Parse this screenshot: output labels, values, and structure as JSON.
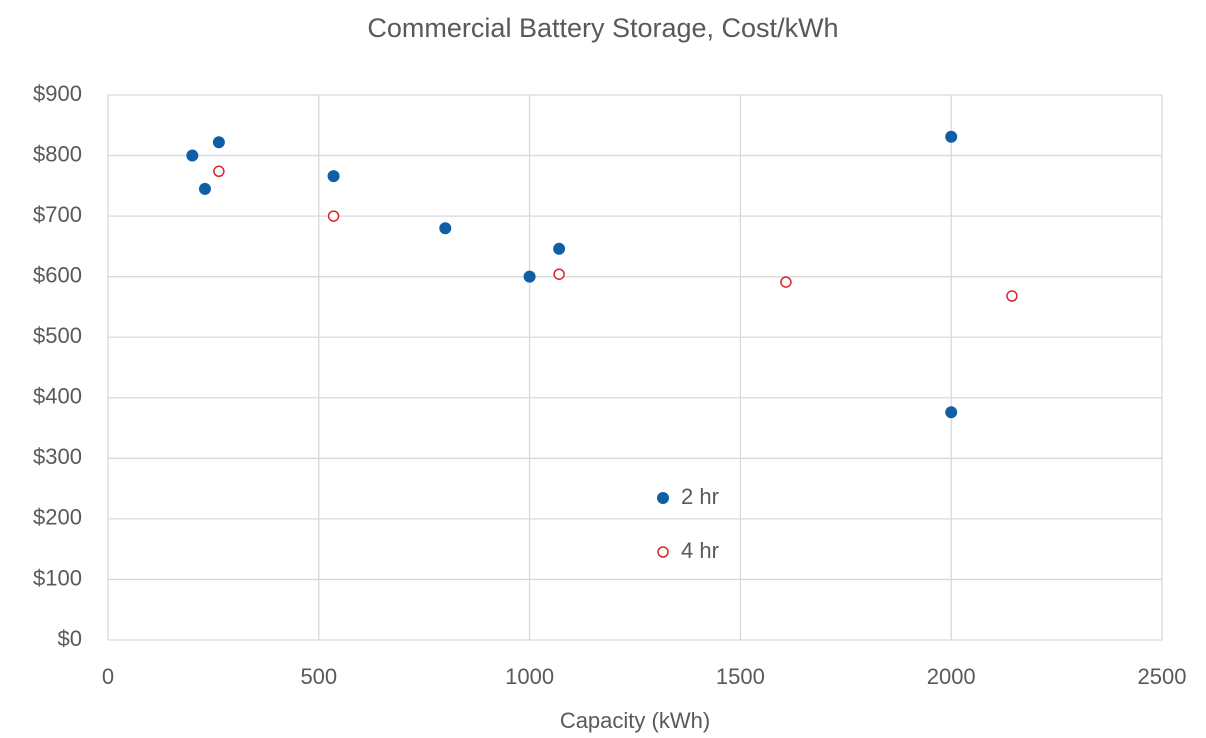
{
  "chart_data": {
    "type": "scatter",
    "title": "Commercial Battery Storage, Cost/kWh",
    "x_label": "Capacity (kWh)",
    "series": [
      {
        "name": "2 hr",
        "color": "#0f5fa6",
        "filled": true,
        "x": [
          200,
          263,
          230,
          535,
          800,
          1000,
          1070,
          2000,
          2000
        ],
        "values": [
          800,
          822,
          745,
          766,
          680,
          600,
          646,
          831,
          376
        ]
      },
      {
        "name": "4 hr",
        "color": "#d9262a",
        "filled": false,
        "x": [
          263,
          535,
          1070,
          1608,
          2144
        ],
        "values": [
          774,
          700,
          604,
          591,
          568
        ]
      }
    ],
    "xlim": [
      0,
      2500
    ],
    "xticks": [
      0,
      500,
      1000,
      1500,
      2000,
      2500
    ],
    "ylim": [
      0,
      900
    ],
    "yticks": [
      {
        "value": 0,
        "label": "$0"
      },
      {
        "value": 100,
        "label": "$100"
      },
      {
        "value": 200,
        "label": "$200"
      },
      {
        "value": 300,
        "label": "$300"
      },
      {
        "value": 400,
        "label": "$400"
      },
      {
        "value": 500,
        "label": "$500"
      },
      {
        "value": 600,
        "label": "$600"
      },
      {
        "value": 700,
        "label": "$700"
      },
      {
        "value": 800,
        "label": "$800"
      },
      {
        "value": 900,
        "label": "$900"
      }
    ],
    "grid": true
  }
}
